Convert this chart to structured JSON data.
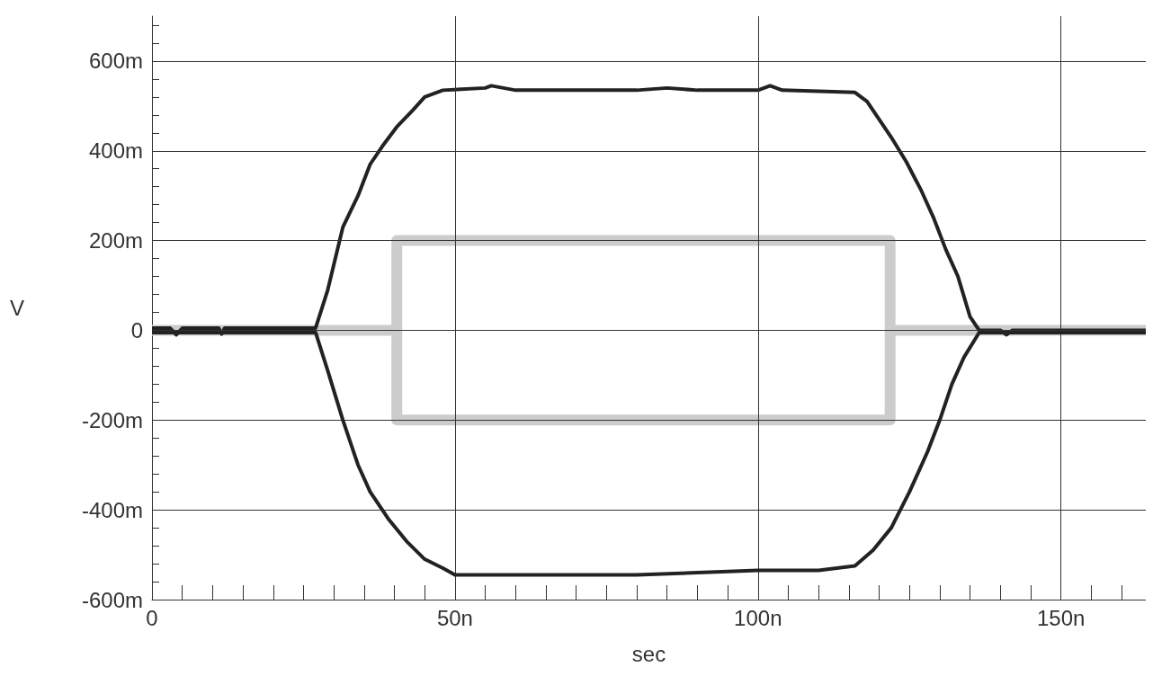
{
  "chart_data": {
    "type": "line",
    "xlabel": "sec",
    "ylabel": "V",
    "xlim": [
      0,
      164
    ],
    "ylim": [
      -600,
      700
    ],
    "xticks": [
      0,
      {
        "value": 5,
        "label": null
      },
      {
        "value": 10,
        "label": null
      },
      {
        "value": 15,
        "label": null
      },
      {
        "value": 20,
        "label": null
      },
      {
        "value": 25,
        "label": null
      },
      {
        "value": 30,
        "label": null
      },
      {
        "value": 35,
        "label": null
      },
      {
        "value": 40,
        "label": null
      },
      {
        "value": 45,
        "label": null
      },
      {
        "value": 50,
        "label": "50n"
      },
      {
        "value": 55,
        "label": null
      },
      {
        "value": 60,
        "label": null
      },
      {
        "value": 65,
        "label": null
      },
      {
        "value": 70,
        "label": null
      },
      {
        "value": 75,
        "label": null
      },
      {
        "value": 80,
        "label": null
      },
      {
        "value": 85,
        "label": null
      },
      {
        "value": 90,
        "label": null
      },
      {
        "value": 95,
        "label": null
      },
      {
        "value": 100,
        "label": "100n"
      },
      {
        "value": 105,
        "label": null
      },
      {
        "value": 110,
        "label": null
      },
      {
        "value": 115,
        "label": null
      },
      {
        "value": 120,
        "label": null
      },
      {
        "value": 125,
        "label": null
      },
      {
        "value": 130,
        "label": null
      },
      {
        "value": 135,
        "label": null
      },
      {
        "value": 140,
        "label": null
      },
      {
        "value": 145,
        "label": null
      },
      {
        "value": 150,
        "label": "150n"
      },
      {
        "value": 155,
        "label": null
      },
      {
        "value": 160,
        "label": null
      }
    ],
    "yticks": [
      {
        "value": -600,
        "label": "-600m"
      },
      {
        "value": -560,
        "label": null
      },
      {
        "value": -520,
        "label": null
      },
      {
        "value": -480,
        "label": null
      },
      {
        "value": -440,
        "label": null
      },
      {
        "value": -400,
        "label": "-400m"
      },
      {
        "value": -360,
        "label": null
      },
      {
        "value": -320,
        "label": null
      },
      {
        "value": -280,
        "label": null
      },
      {
        "value": -240,
        "label": null
      },
      {
        "value": -200,
        "label": "-200m"
      },
      {
        "value": -160,
        "label": null
      },
      {
        "value": -120,
        "label": null
      },
      {
        "value": -80,
        "label": null
      },
      {
        "value": -40,
        "label": null
      },
      0,
      {
        "value": 40,
        "label": null
      },
      {
        "value": 80,
        "label": null
      },
      {
        "value": 120,
        "label": null
      },
      {
        "value": 160,
        "label": null
      },
      {
        "value": 200,
        "label": "200m"
      },
      {
        "value": 240,
        "label": null
      },
      {
        "value": 280,
        "label": null
      },
      {
        "value": 320,
        "label": null
      },
      {
        "value": 360,
        "label": null
      },
      {
        "value": 400,
        "label": "400m"
      },
      {
        "value": 440,
        "label": null
      },
      {
        "value": 480,
        "label": null
      },
      {
        "value": 520,
        "label": null
      },
      {
        "value": 560,
        "label": null
      },
      {
        "value": 600,
        "label": "600m"
      },
      {
        "value": 640,
        "label": null
      },
      {
        "value": 680,
        "label": null
      }
    ],
    "grid": true,
    "marker": "none",
    "line_style": "solid",
    "series": [
      {
        "color": "#cccccc",
        "x": [
          0,
          40.4,
          40.4,
          121.8,
          121.8,
          164
        ],
        "values": [
          0,
          0,
          200,
          200,
          0,
          0
        ]
      },
      {
        "color": "#cccccc",
        "x": [
          40.4,
          40.4,
          121.8,
          121.8
        ],
        "values": [
          0,
          -200,
          -200,
          0
        ]
      },
      {
        "color": "#222222",
        "x": [
          0,
          3,
          4,
          5,
          11,
          11.5,
          12,
          27,
          29,
          31.5,
          34,
          36,
          38,
          40.5,
          43,
          45,
          48,
          55,
          56,
          60,
          80,
          85,
          90,
          100,
          102,
          104,
          116,
          118,
          120,
          122,
          124.5,
          127,
          129,
          131,
          133,
          135,
          136.5,
          140,
          141,
          142,
          160,
          164
        ],
        "values": [
          5,
          5,
          -10,
          5,
          5,
          -8,
          5,
          5,
          90,
          230,
          300,
          370,
          410,
          455,
          490,
          520,
          535,
          540,
          545,
          535,
          535,
          540,
          535,
          535,
          545,
          535,
          530,
          510,
          470,
          430,
          375,
          310,
          250,
          180,
          120,
          30,
          0,
          0,
          -10,
          0,
          0,
          0
        ]
      },
      {
        "color": "#222222",
        "x": [
          0,
          27,
          29,
          31.5,
          34,
          36,
          39,
          42,
          45,
          48,
          50,
          60,
          80,
          90,
          100,
          110,
          116,
          119,
          122,
          125,
          128,
          130,
          132,
          134,
          136.5,
          164
        ],
        "values": [
          -5,
          -5,
          -90,
          -200,
          -300,
          -360,
          -420,
          -470,
          -510,
          -530,
          -545,
          -545,
          -545,
          -540,
          -535,
          -535,
          -525,
          -490,
          -440,
          -360,
          -270,
          -200,
          -120,
          -60,
          -5,
          -5
        ]
      }
    ]
  }
}
